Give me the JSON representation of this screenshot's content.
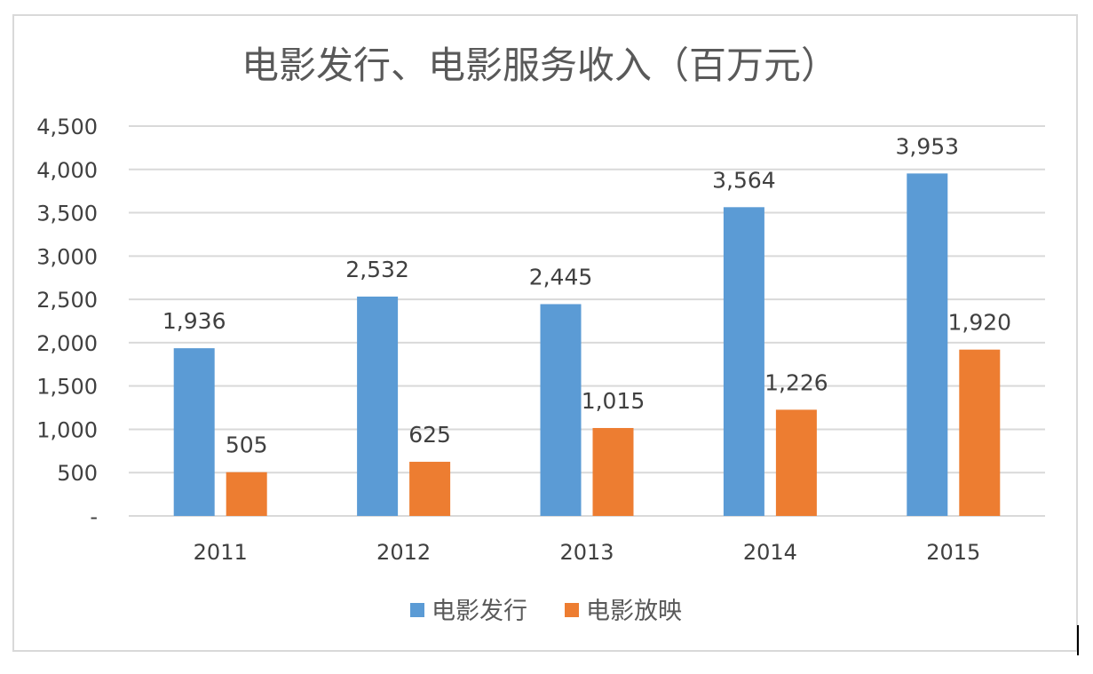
{
  "chart_data": {
    "type": "bar",
    "title": "电影发行、电影服务收入（百万元）",
    "categories": [
      "2011",
      "2012",
      "2013",
      "2014",
      "2015"
    ],
    "series": [
      {
        "name": "电影发行",
        "values": [
          1936,
          2532,
          2445,
          3564,
          3953
        ],
        "color": "#5b9bd5"
      },
      {
        "name": "电影放映",
        "values": [
          505,
          625,
          1015,
          1226,
          1920
        ],
        "color": "#ed7d31"
      }
    ],
    "data_labels": [
      [
        "1,936",
        "2,532",
        "2,445",
        "3,564",
        "3,953"
      ],
      [
        "505",
        "625",
        "1,015",
        "1,226",
        "1,920"
      ]
    ],
    "y_ticks": [
      "-",
      "500",
      "1,000",
      "1,500",
      "2,000",
      "2,500",
      "3,000",
      "3,500",
      "4,000",
      "4,500"
    ],
    "ylim": [
      0,
      4500
    ],
    "xlabel": "",
    "ylabel": "",
    "grid": true,
    "legend_position": "bottom",
    "gridline_color": "#d9d9d9"
  }
}
